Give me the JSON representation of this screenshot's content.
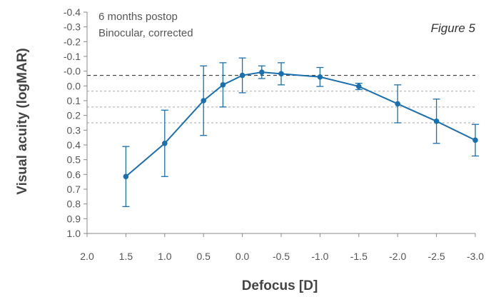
{
  "chart_data": {
    "type": "line",
    "title": "",
    "figure_label": "Figure 5",
    "annotations": [
      "6 months postop",
      "Binocular, corrected"
    ],
    "xlabel": "Defocus [D]",
    "ylabel": "Visual acuity (logMAR)",
    "x_tick_labels": [
      "2.0",
      "1.5",
      "1.0",
      "0.5",
      "0.0",
      "-0.5",
      "-1.0",
      "-1.5",
      "-2.0",
      "-2.5",
      "-3.0"
    ],
    "x_ticks": [
      2.0,
      1.5,
      1.0,
      0.5,
      0.0,
      -0.5,
      -1.0,
      -1.5,
      -2.0,
      -2.5,
      -3.0
    ],
    "xlim": [
      2.0,
      -3.0
    ],
    "y_tick_labels": [
      "-0.4",
      "-0.3",
      "-0.2",
      "-0.1",
      "-0.0",
      "0.0",
      "0.1",
      "0.2",
      "0.3",
      "0.4",
      "0.5",
      "0.6",
      "0.7",
      "0.8",
      "0.9",
      "1.0"
    ],
    "ylim": [
      -0.4,
      1.0
    ],
    "y_inverted": true,
    "grid": "dashed horizontal at 0.0 to 0.3",
    "series": [
      {
        "color": "#1a6fae",
        "x": [
          1.5,
          1.0,
          0.5,
          0.25,
          0.0,
          -0.25,
          -0.5,
          -1.0,
          -1.5,
          -2.0,
          -2.5,
          -3.0
        ],
        "y": [
          0.64,
          0.43,
          0.16,
          0.06,
          0.0,
          -0.02,
          -0.01,
          0.01,
          0.07,
          0.18,
          0.29,
          0.41
        ],
        "error": [
          0.19,
          0.21,
          0.22,
          0.14,
          0.11,
          0.04,
          0.07,
          0.06,
          0.02,
          0.12,
          0.14,
          0.1
        ]
      }
    ],
    "colors": {
      "series": "#1a6fae",
      "axis": "#888888",
      "zero_line": "#222222",
      "grid": "#aaaaaa"
    }
  }
}
